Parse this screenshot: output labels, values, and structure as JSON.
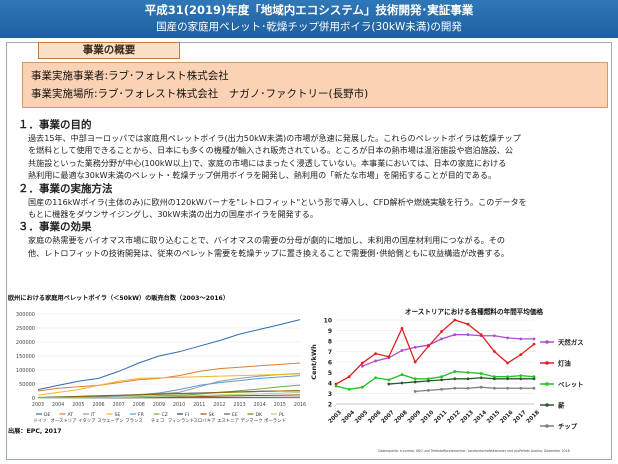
{
  "header": {
    "title": "平成31(2019)年度「地域内エコシステム」技術開発･実証事業",
    "subtitle": "国産の家庭用ペレット･乾燥チップ併用ボイラ(30kW未満)の開発"
  },
  "overview": {
    "tab_label": "事業の概要",
    "implementer": "事業実施事業者:ラブ･フォレスト株式会社",
    "location": "事業実施場所:ラブ･フォレスト株式会社　ナガノ･ファクトリー(長野市)"
  },
  "sections": [
    {
      "heading": "１．事業の目的",
      "lines": [
        "過去15年、中部ヨーロッパでは家庭用ペレットボイラ(出力50kW未満)の市場が急速に発展した。これらのペレットボイラは乾燥チップ",
        "を燃料として使用できることから、日本にも多くの機種が輸入され販売されている。ところが日本の熱市場は温浴施設や宿泊施設、公",
        "共施設といった業務分野が中心(100kW以上)で、家庭の市場にはまったく浸透していない。本事業においては、日本の家庭における",
        "熱利用に最適な30kW未満のペレット・乾燥チップ併用ボイラを開発し、熱利用の「新たな市場」を開拓することが目的である。"
      ]
    },
    {
      "heading": "２．事業の実施方法",
      "lines": [
        "国産の116kWボイラ(主体のみ)に欧州の120kWバーナを\"レトロフィット\"という形で導入し、CFD解析や燃焼実験を行う。このデータを",
        "もとに機器をダウンサイジングし、30kW未満の出力の国産ボイラを開発する。"
      ]
    },
    {
      "heading": "３．事業の効果",
      "lines": [
        "家庭の熱需要をバイオマス市場に取り込むことで、バイオマスの需要の分母が劇的に増加し、未利用の国産材利用につながる。その",
        "他、レトロフィットの技術開発は、従来のペレット需要を乾燥チップに置き換えることで需要側･供給側ともに収益構造が改善する。"
      ]
    }
  ],
  "chart_data": [
    {
      "type": "line",
      "title": "欧州における家庭用ペレットボイラ（＜50kW）の販売台数（2003～2016）",
      "x": [
        2003,
        2004,
        2005,
        2006,
        2007,
        2008,
        2009,
        2010,
        2011,
        2012,
        2013,
        2014,
        2015,
        2016
      ],
      "ylim": [
        0,
        300000
      ],
      "yticks": [
        "0",
        "50000",
        "100000",
        "150000",
        "200000",
        "250000",
        "300000"
      ],
      "series": [
        {
          "name": "DE",
          "label": "ドイツ",
          "color": "#2e6db4",
          "values": [
            30000,
            45000,
            60000,
            70000,
            95000,
            125000,
            150000,
            165000,
            185000,
            205000,
            228000,
            245000,
            262000,
            280000
          ]
        },
        {
          "name": "AT",
          "label": "オーストリア",
          "color": "#e07d34",
          "values": [
            25000,
            35000,
            40000,
            45000,
            55000,
            65000,
            70000,
            80000,
            95000,
            105000,
            110000,
            115000,
            120000,
            125000
          ]
        },
        {
          "name": "IT",
          "label": "イタリア",
          "color": "#9a9a9a",
          "values": [
            0,
            2000,
            4000,
            5000,
            8000,
            10000,
            15000,
            20000,
            40000,
            60000,
            70000,
            78000,
            84000,
            88000
          ]
        },
        {
          "name": "SE",
          "label": "スウェーデン",
          "color": "#e8b82a",
          "values": [
            10000,
            20000,
            30000,
            45000,
            60000,
            70000,
            72000,
            74000,
            76000,
            78000,
            80000,
            82000,
            84000,
            86000
          ]
        },
        {
          "name": "FR",
          "label": "フランス",
          "color": "#5b9bd5",
          "values": [
            0,
            1000,
            2000,
            4000,
            8000,
            12000,
            18000,
            30000,
            45000,
            55000,
            62000,
            70000,
            75000,
            80000
          ]
        },
        {
          "name": "CZ",
          "label": "チェコ",
          "color": "#70ad47",
          "values": [
            0,
            500,
            1000,
            2000,
            3000,
            5000,
            8000,
            10000,
            14000,
            20000,
            26000,
            32000,
            40000,
            46000
          ]
        },
        {
          "name": "FI",
          "label": "フィンランド",
          "color": "#264478",
          "values": [
            2000,
            4000,
            6000,
            8000,
            10000,
            12000,
            14000,
            16000,
            18000,
            20000,
            22000,
            24000,
            25000,
            26000
          ]
        },
        {
          "name": "SK",
          "label": "スロバキア",
          "color": "#9e480e",
          "values": [
            0,
            200,
            400,
            800,
            1200,
            1800,
            2500,
            3500,
            5000,
            6500,
            8000,
            9000,
            10000,
            11000
          ]
        },
        {
          "name": "EE",
          "label": "エストニア",
          "color": "#636363",
          "values": [
            0,
            100,
            200,
            300,
            500,
            700,
            900,
            1200,
            1500,
            1800,
            2100,
            2400,
            2700,
            3000
          ]
        },
        {
          "name": "DK",
          "label": "デンマーク",
          "color": "#997300",
          "values": [
            1000,
            3000,
            5000,
            7000,
            9000,
            11000,
            13000,
            15000,
            17000,
            19000,
            21000,
            23000,
            25000,
            27000
          ]
        },
        {
          "name": "PL",
          "label": "ポーランド",
          "color": "#a9d18e",
          "values": [
            0,
            300,
            600,
            1000,
            2000,
            3000,
            5000,
            7000,
            9000,
            11000,
            13000,
            15000,
            17000,
            20000
          ]
        }
      ],
      "source": "出展：EPC, 2017"
    },
    {
      "type": "line",
      "title": "オーストリアにおける各種燃料の年間平均価格",
      "x": [
        2003,
        2004,
        2005,
        2006,
        2007,
        2008,
        2009,
        2010,
        2011,
        2012,
        2013,
        2014,
        2015,
        2016,
        2017,
        2018
      ],
      "ylim": [
        2,
        10
      ],
      "yticks": [
        2,
        3,
        4,
        5,
        6,
        7,
        8,
        9,
        10
      ],
      "ylabel": "Cent/kWh",
      "series": [
        {
          "name": "天然ガス",
          "color": "#b04cd0",
          "values": [
            null,
            null,
            5.6,
            6.1,
            6.4,
            7.1,
            7.4,
            7.6,
            8.2,
            8.6,
            8.6,
            8.5,
            8.5,
            8.3,
            8.2,
            8.2
          ]
        },
        {
          "name": "灯油",
          "color": "#e02020",
          "values": [
            3.9,
            4.6,
            5.9,
            6.8,
            6.5,
            9.2,
            6.0,
            7.5,
            8.9,
            10.0,
            9.6,
            8.6,
            7.0,
            5.9,
            6.7,
            7.7
          ]
        },
        {
          "name": "ペレット",
          "color": "#22c022",
          "values": [
            3.7,
            3.4,
            3.6,
            4.5,
            4.3,
            4.8,
            4.4,
            4.4,
            4.6,
            5.1,
            5.0,
            4.9,
            4.6,
            4.6,
            4.7,
            4.6
          ]
        },
        {
          "name": "薪",
          "color": "#2a5a2a",
          "values": [
            null,
            null,
            null,
            null,
            3.9,
            4.0,
            4.1,
            4.2,
            4.3,
            4.4,
            4.4,
            4.5,
            4.4,
            4.4,
            4.4,
            4.4
          ]
        },
        {
          "name": "チップ",
          "color": "#7f7f7f",
          "values": [
            null,
            null,
            null,
            null,
            null,
            null,
            3.2,
            3.3,
            3.4,
            3.5,
            3.5,
            3.6,
            3.5,
            3.5,
            3.5,
            3.5
          ]
        }
      ],
      "source": "Datenquelle: e-control, IWO und Treibstoffpreismonitor, Landwirtschaftskammer und proPellets Austria, Dezember 2018"
    }
  ]
}
